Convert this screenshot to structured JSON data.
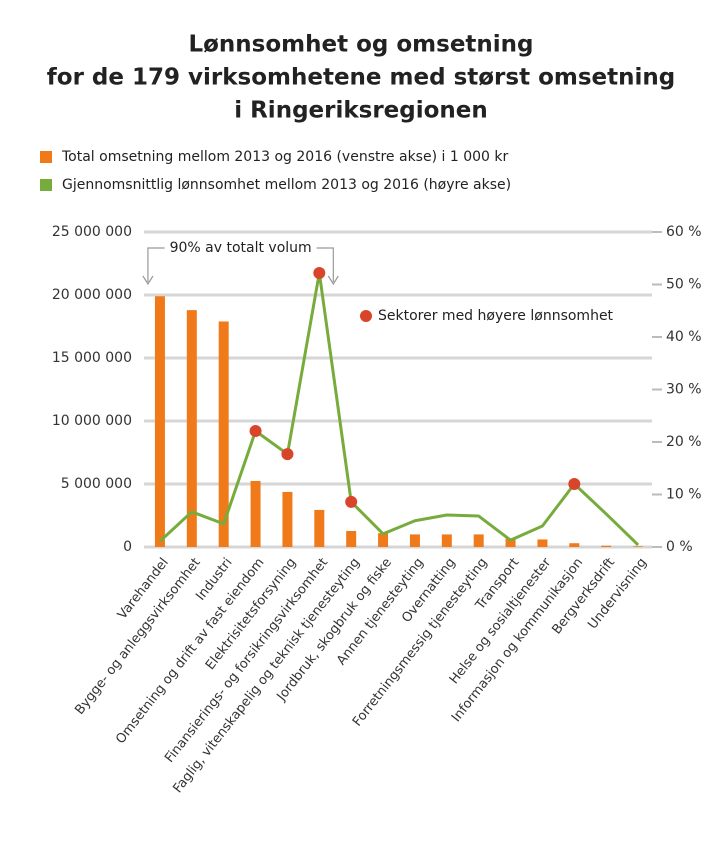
{
  "chart_data": {
    "type": "bar-line",
    "title": [
      "Lønnsomhet og omsetning",
      "for de 179 virksomhetene med størst omsetning",
      "i Ringeriksregionen"
    ],
    "categories": [
      "Varehandel",
      "Bygge- og anleggsvirksomhet",
      "Industri",
      "Omsetning og drift av fast eiendom",
      "Elektrisitetsforsyning",
      "Finansierings- og forsikringsvirksomhet",
      "Faglig, vitenskapelig og teknisk tjenesteyting",
      "Jordbruk, skogbruk og fiske",
      "Annen tjenesteyting",
      "Overnatting",
      "Forretningsmessig tjenesteyting",
      "Transport",
      "Helse og sosialtjenester",
      "Informasjon og kommunikasjon",
      "Bergverksdrift",
      "Undervisning"
    ],
    "series": [
      {
        "name": "Total omsetning mellom 2013 og 2016 (venstre akse) i 1 000 kr",
        "color": "#f07a1a",
        "type": "bar",
        "values": [
          19900000,
          18800000,
          17900000,
          5240000,
          4370000,
          2940000,
          1270000,
          1100000,
          1000000,
          1000000,
          1000000,
          700000,
          600000,
          300000,
          100000,
          50000
        ]
      },
      {
        "name": "Gjennomsnittlig lønnsomhet mellom 2013 og 2016 (høyre akse)",
        "color": "#77ac3c",
        "type": "line",
        "axis": "y2",
        "values": [
          1.1,
          6.7,
          4.4,
          22.1,
          17.7,
          52.2,
          8.6,
          2.5,
          5.0,
          6.1,
          5.9,
          1.3,
          4.0,
          12.0,
          6.3,
          0.4
        ]
      }
    ],
    "highlight": {
      "name": "Sektorer med høyere lønnsomhet",
      "color": "#d9452b",
      "indices": [
        3,
        4,
        5,
        6,
        13
      ]
    },
    "annotation": {
      "text": "90% av totalt volum",
      "from": 0,
      "to": 5
    },
    "ylim": [
      0,
      25000000
    ],
    "yticks": [
      0,
      {
        "value": 5000000,
        "label": "5 000 000"
      },
      {
        "value": 10000000,
        "label": "10 000 000"
      },
      {
        "value": 15000000,
        "label": "15 000 000"
      },
      {
        "value": 20000000,
        "label": "20 000 000"
      },
      {
        "value": 25000000,
        "label": "25 000 000"
      }
    ],
    "y2lim": [
      0,
      60
    ],
    "y2ticks": [
      {
        "value": 0,
        "label": "0 %"
      },
      {
        "value": 10,
        "label": "10 %"
      },
      {
        "value": 20,
        "label": "20 %"
      },
      {
        "value": 30,
        "label": "30 %"
      },
      {
        "value": 40,
        "label": "40 %"
      },
      {
        "value": 50,
        "label": "50 %"
      },
      {
        "value": 60,
        "label": "60 %"
      }
    ],
    "grid": true
  }
}
